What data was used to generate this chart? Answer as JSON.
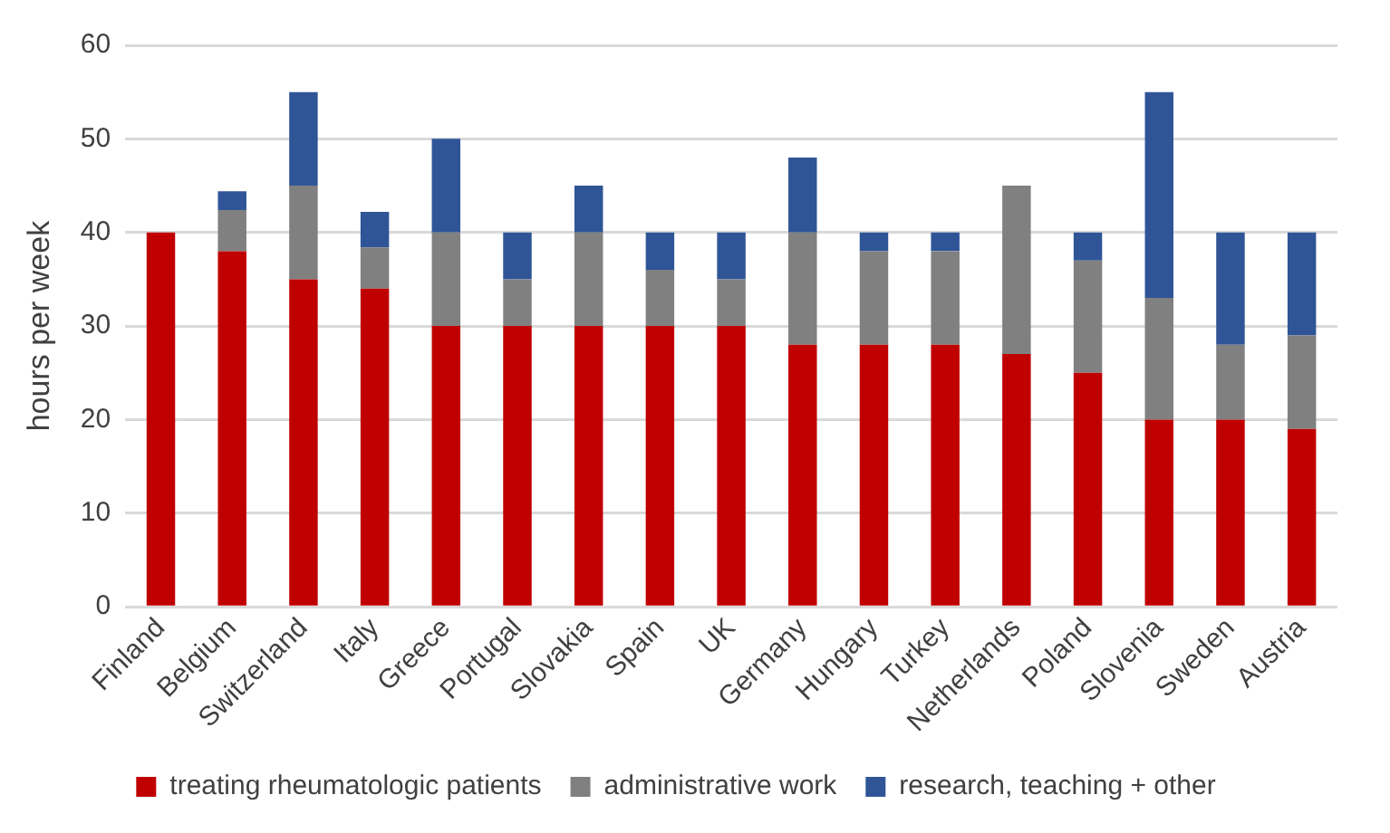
{
  "chart_data": {
    "type": "bar",
    "stacked": true,
    "ylabel": "hours per week",
    "categories": [
      "Finland",
      "Belgium",
      "Switzerland",
      "Italy",
      "Greece",
      "Portugal",
      "Slovakia",
      "Spain",
      "UK",
      "Germany",
      "Hungary",
      "Turkey",
      "Netherlands",
      "Poland",
      "Slovenia",
      "Sweden",
      "Austria"
    ],
    "series": [
      {
        "name": "treating rheumatologic patients",
        "color": "#c00000",
        "values": [
          40,
          38,
          35,
          34,
          30,
          30,
          30,
          30,
          30,
          28,
          28,
          28,
          27,
          25,
          20,
          20,
          19
        ]
      },
      {
        "name": "administrative work",
        "color": "#808080",
        "values": [
          0,
          4.4,
          10,
          4.4,
          10,
          5,
          10,
          6,
          5,
          12,
          10,
          10,
          18,
          12,
          13,
          8,
          10
        ]
      },
      {
        "name": "research, teaching + other",
        "color": "#2f5597",
        "values": [
          0,
          2,
          10,
          3.8,
          10,
          5,
          5,
          4,
          5,
          8,
          2,
          2,
          0,
          3,
          22,
          12,
          11
        ]
      }
    ],
    "ylim": [
      0,
      60
    ],
    "yticks": [
      0,
      10,
      20,
      30,
      40,
      50,
      60
    ],
    "grid": "y",
    "legend": "bottom"
  }
}
